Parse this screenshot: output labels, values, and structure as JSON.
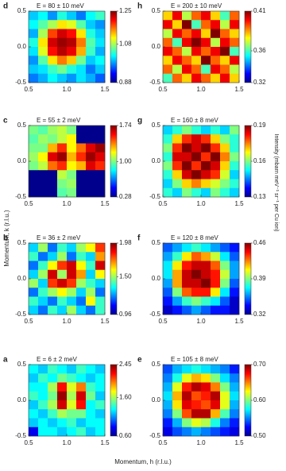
{
  "xlabel": "Momentum, h (r.l.u.)",
  "ylabel": "Momentum, k (r.l.u.)",
  "colorbar_label": "Intensity (mbarn meV⁻¹ sr⁻¹ per Cu ion)",
  "chart_data": [
    {
      "type": "heatmap",
      "panel": "d",
      "title": "E = 80 ± 10 meV",
      "xlim": [
        0.5,
        1.5
      ],
      "ylim": [
        -0.5,
        0.5
      ],
      "xticks": [
        0.5,
        {
          "value": 1,
          "label": "1.0"
        },
        1.5
      ],
      "yticks": [
        0.5,
        {
          "value": 0,
          "label": "0.0"
        },
        -0.5
      ],
      "clim": [
        0.88,
        1.25
      ],
      "cticks": [
        1.25,
        1.08,
        0.88
      ],
      "z": [
        [
          1.0,
          1.02,
          0.98,
          1.03,
          1.0,
          0.97,
          1.02,
          1.04
        ],
        [
          1.02,
          1.05,
          1.08,
          1.12,
          1.1,
          1.05,
          1.0,
          0.98
        ],
        [
          0.99,
          1.08,
          1.18,
          1.22,
          1.2,
          1.12,
          1.03,
          1.0
        ],
        [
          1.03,
          1.12,
          1.22,
          1.24,
          1.23,
          1.16,
          1.05,
          1.01
        ],
        [
          1.01,
          1.1,
          1.2,
          1.23,
          1.21,
          1.14,
          1.04,
          0.99
        ],
        [
          0.98,
          1.05,
          1.12,
          1.16,
          1.13,
          1.06,
          1.0,
          1.02
        ],
        [
          1.0,
          1.01,
          1.04,
          1.06,
          1.03,
          1.01,
          0.97,
          1.0
        ],
        [
          0.97,
          0.99,
          1.02,
          1.0,
          0.98,
          1.01,
          0.99,
          0.96
        ]
      ]
    },
    {
      "type": "heatmap",
      "panel": "c",
      "title": "E = 55 ± 2 meV",
      "xlim": [
        0.5,
        1.5
      ],
      "ylim": [
        -0.5,
        0.5
      ],
      "xticks": [
        0.5,
        {
          "value": 1,
          "label": "1.0"
        },
        1.5
      ],
      "yticks": [
        0.5,
        {
          "value": 0,
          "label": "0.0"
        },
        -0.5
      ],
      "clim": [
        0.28,
        1.74
      ],
      "cticks": [
        1.74,
        {
          "value": 1,
          "label": "1.00"
        },
        0.28
      ],
      "z": [
        [
          1.0,
          0.95,
          1.05,
          1.1,
          1.0,
          0.3,
          0.3,
          0.3
        ],
        [
          0.95,
          1.05,
          1.0,
          1.1,
          1.2,
          0.3,
          0.3,
          0.3
        ],
        [
          1.0,
          1.0,
          1.3,
          1.5,
          1.2,
          1.4,
          1.6,
          1.7
        ],
        [
          1.05,
          1.2,
          1.6,
          1.7,
          1.3,
          1.5,
          1.7,
          1.6
        ],
        [
          1.0,
          1.1,
          1.4,
          1.5,
          1.2,
          1.3,
          1.6,
          1.5
        ],
        [
          0.3,
          0.3,
          0.3,
          1.1,
          1.0,
          0.3,
          0.3,
          0.3
        ],
        [
          0.3,
          0.3,
          0.3,
          1.0,
          1.05,
          0.3,
          0.3,
          0.3
        ],
        [
          0.3,
          0.3,
          0.3,
          0.95,
          1.0,
          0.3,
          0.3,
          0.3
        ]
      ]
    },
    {
      "type": "heatmap",
      "panel": "b",
      "title": "E = 36 ± 2 meV",
      "xlim": [
        0.5,
        1.5
      ],
      "ylim": [
        -0.5,
        0.5
      ],
      "xticks": [
        0.5,
        {
          "value": 1,
          "label": "1.0"
        },
        1.5
      ],
      "yticks": [
        0.5,
        {
          "value": 0,
          "label": "0.0"
        },
        -0.5
      ],
      "clim": [
        0.96,
        1.98
      ],
      "cticks": [
        1.98,
        {
          "value": 1.5,
          "label": "1.50"
        },
        0.96
      ],
      "z": [
        [
          1.3,
          1.5,
          1.2,
          1.4,
          1.3,
          1.5,
          1.6,
          1.8
        ],
        [
          1.4,
          1.2,
          1.3,
          1.5,
          1.2,
          1.4,
          1.3,
          1.7
        ],
        [
          1.2,
          1.4,
          1.6,
          1.8,
          1.9,
          1.6,
          1.4,
          1.9
        ],
        [
          1.3,
          1.5,
          1.9,
          1.5,
          1.9,
          1.7,
          1.3,
          1.6
        ],
        [
          1.5,
          1.3,
          1.8,
          1.9,
          1.8,
          1.5,
          1.4,
          1.3
        ],
        [
          1.2,
          1.4,
          1.5,
          1.6,
          1.5,
          1.3,
          1.5,
          1.2
        ],
        [
          1.4,
          1.3,
          1.2,
          1.4,
          1.3,
          1.2,
          1.6,
          1.4
        ],
        [
          1.3,
          1.2,
          1.4,
          1.3,
          1.5,
          1.3,
          1.2,
          1.4
        ]
      ]
    },
    {
      "type": "heatmap",
      "panel": "a",
      "title": "E = 6 ± 2 meV",
      "xlim": [
        0.5,
        1.5
      ],
      "ylim": [
        -0.5,
        0.5
      ],
      "xticks": [
        0.5,
        {
          "value": 1,
          "label": "1.0"
        },
        1.5
      ],
      "yticks": [
        0.5,
        {
          "value": 0,
          "label": "0.0"
        },
        -0.5
      ],
      "clim": [
        0.6,
        2.45
      ],
      "cticks": [
        2.45,
        {
          "value": 1.6,
          "label": "1.60"
        },
        {
          "value": 0.6,
          "label": "0.60"
        }
      ],
      "z": [
        [
          1.3,
          1.2,
          1.4,
          1.3,
          1.2,
          1.4,
          1.3,
          1.2
        ],
        [
          1.2,
          1.4,
          1.3,
          1.5,
          1.4,
          1.3,
          1.2,
          1.3
        ],
        [
          1.3,
          1.3,
          1.6,
          2.2,
          1.7,
          2.0,
          1.4,
          1.3
        ],
        [
          1.4,
          1.3,
          1.5,
          2.4,
          1.6,
          2.3,
          1.5,
          1.2
        ],
        [
          1.2,
          1.4,
          1.6,
          2.3,
          1.7,
          2.2,
          1.3,
          1.4
        ],
        [
          1.3,
          1.2,
          1.4,
          1.6,
          1.5,
          1.5,
          1.3,
          1.2
        ],
        [
          1.2,
          1.3,
          1.2,
          1.3,
          1.4,
          1.2,
          1.3,
          1.3
        ],
        [
          0.8,
          1.3,
          1.3,
          1.2,
          1.3,
          1.4,
          1.2,
          1.3
        ]
      ]
    },
    {
      "type": "heatmap",
      "panel": "h",
      "title": "E = 200 ± 10 meV",
      "xlim": [
        0.5,
        1.5
      ],
      "ylim": [
        -0.5,
        0.5
      ],
      "xticks": [
        0.5,
        {
          "value": 1,
          "label": "1.0"
        },
        1.5
      ],
      "yticks": [
        0.5,
        {
          "value": 0,
          "label": "0.0"
        },
        -0.5
      ],
      "clim": [
        0.32,
        0.41
      ],
      "cticks": [
        0.41,
        0.36,
        0.32
      ],
      "z": [
        [
          0.38,
          0.4,
          0.37,
          0.39,
          0.4,
          0.38,
          0.36,
          0.39
        ],
        [
          0.4,
          0.38,
          0.41,
          0.36,
          0.39,
          0.4,
          0.37,
          0.4
        ],
        [
          0.37,
          0.4,
          0.39,
          0.4,
          0.38,
          0.41,
          0.39,
          0.38
        ],
        [
          0.39,
          0.36,
          0.4,
          0.41,
          0.4,
          0.37,
          0.4,
          0.39
        ],
        [
          0.4,
          0.39,
          0.37,
          0.4,
          0.39,
          0.4,
          0.41,
          0.36
        ],
        [
          0.38,
          0.4,
          0.39,
          0.38,
          0.41,
          0.39,
          0.38,
          0.4
        ],
        [
          0.39,
          0.37,
          0.4,
          0.39,
          0.36,
          0.4,
          0.39,
          0.37
        ],
        [
          0.36,
          0.39,
          0.38,
          0.4,
          0.39,
          0.38,
          0.4,
          0.38
        ]
      ]
    },
    {
      "type": "heatmap",
      "panel": "g",
      "title": "E = 160 ± 8 meV",
      "xlim": [
        0.5,
        1.5
      ],
      "ylim": [
        -0.5,
        0.5
      ],
      "xticks": [
        0.5,
        {
          "value": 1,
          "label": "1.0"
        },
        1.5
      ],
      "yticks": [
        0.5,
        {
          "value": 0,
          "label": "0.0"
        },
        -0.5
      ],
      "clim": [
        0.13,
        0.19
      ],
      "cticks": [
        0.19,
        0.16,
        0.13
      ],
      "z": [
        [
          0.15,
          0.155,
          0.16,
          0.155,
          0.15,
          0.155,
          0.15,
          0.16
        ],
        [
          0.155,
          0.17,
          0.18,
          0.185,
          0.18,
          0.17,
          0.16,
          0.155
        ],
        [
          0.16,
          0.18,
          0.19,
          0.185,
          0.19,
          0.18,
          0.17,
          0.155
        ],
        [
          0.155,
          0.185,
          0.185,
          0.19,
          0.18,
          0.19,
          0.175,
          0.16
        ],
        [
          0.16,
          0.18,
          0.19,
          0.18,
          0.19,
          0.185,
          0.17,
          0.155
        ],
        [
          0.155,
          0.17,
          0.185,
          0.19,
          0.185,
          0.18,
          0.165,
          0.15
        ],
        [
          0.15,
          0.16,
          0.17,
          0.175,
          0.17,
          0.165,
          0.16,
          0.155
        ],
        [
          0.155,
          0.15,
          0.16,
          0.155,
          0.15,
          0.16,
          0.155,
          0.15
        ]
      ]
    },
    {
      "type": "heatmap",
      "panel": "f",
      "title": "E = 120 ± 8 meV",
      "xlim": [
        0.5,
        1.5
      ],
      "ylim": [
        -0.5,
        0.5
      ],
      "xticks": [
        0.5,
        {
          "value": 1,
          "label": "1.0"
        },
        1.5
      ],
      "yticks": [
        0.5,
        {
          "value": 0,
          "label": "0.0"
        },
        -0.5
      ],
      "clim": [
        0.32,
        0.46
      ],
      "cticks": [
        0.46,
        0.39,
        0.32
      ],
      "z": [
        [
          0.35,
          0.36,
          0.37,
          0.38,
          0.37,
          0.36,
          0.35,
          0.34
        ],
        [
          0.36,
          0.38,
          0.41,
          0.43,
          0.42,
          0.4,
          0.37,
          0.35
        ],
        [
          0.37,
          0.41,
          0.44,
          0.45,
          0.45,
          0.43,
          0.39,
          0.36
        ],
        [
          0.37,
          0.42,
          0.45,
          0.46,
          0.45,
          0.44,
          0.4,
          0.36
        ],
        [
          0.36,
          0.42,
          0.45,
          0.45,
          0.46,
          0.44,
          0.39,
          0.35
        ],
        [
          0.35,
          0.39,
          0.43,
          0.44,
          0.44,
          0.41,
          0.37,
          0.34
        ],
        [
          0.34,
          0.36,
          0.38,
          0.39,
          0.38,
          0.37,
          0.35,
          0.33
        ],
        [
          0.33,
          0.34,
          0.35,
          0.36,
          0.35,
          0.34,
          0.34,
          0.33
        ]
      ]
    },
    {
      "type": "heatmap",
      "panel": "e",
      "title": "E = 105 ± 8 meV",
      "xlim": [
        0.5,
        1.5
      ],
      "ylim": [
        -0.5,
        0.5
      ],
      "xticks": [
        0.5,
        {
          "value": 1,
          "label": "1.0"
        },
        1.5
      ],
      "yticks": [
        0.5,
        {
          "value": 0,
          "label": "0.0"
        },
        -0.5
      ],
      "clim": [
        0.5,
        0.7
      ],
      "cticks": [
        {
          "value": 0.7,
          "label": "0.70"
        },
        {
          "value": 0.6,
          "label": "0.60"
        },
        {
          "value": 0.5,
          "label": "0.50"
        }
      ],
      "z": [
        [
          0.54,
          0.56,
          0.57,
          0.58,
          0.57,
          0.56,
          0.55,
          0.53
        ],
        [
          0.55,
          0.58,
          0.62,
          0.64,
          0.63,
          0.6,
          0.57,
          0.55
        ],
        [
          0.56,
          0.62,
          0.67,
          0.69,
          0.68,
          0.65,
          0.6,
          0.56
        ],
        [
          0.57,
          0.64,
          0.69,
          0.66,
          0.67,
          0.69,
          0.62,
          0.57
        ],
        [
          0.56,
          0.63,
          0.68,
          0.67,
          0.66,
          0.68,
          0.62,
          0.56
        ],
        [
          0.55,
          0.6,
          0.66,
          0.69,
          0.69,
          0.64,
          0.59,
          0.55
        ],
        [
          0.53,
          0.56,
          0.6,
          0.62,
          0.61,
          0.58,
          0.55,
          0.53
        ],
        [
          0.52,
          0.54,
          0.55,
          0.56,
          0.55,
          0.54,
          0.53,
          0.52
        ]
      ]
    }
  ]
}
